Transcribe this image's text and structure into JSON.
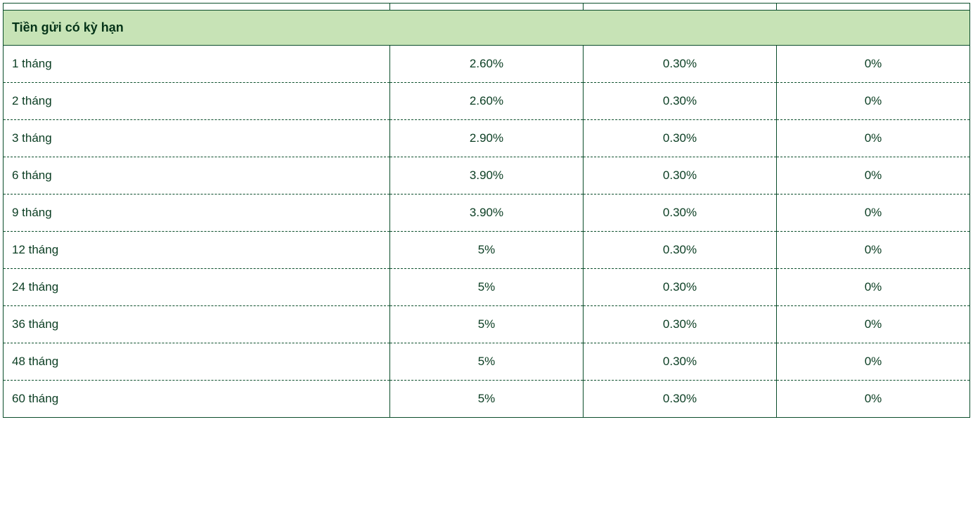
{
  "table": {
    "type": "table",
    "background_color": "#ffffff",
    "border_color": "#0a4d2a",
    "dashed_border_color": "#0a4d2a",
    "text_color": "#0a3d22",
    "font_size_header": 18,
    "font_size_cell": 17,
    "column_widths_pct": [
      40,
      20,
      20,
      20
    ],
    "section_header": {
      "label": "Tiền gửi có kỳ hạn",
      "background_color": "#c7e3b6",
      "font_weight": "700",
      "text_color": "#043318"
    },
    "columns": [
      {
        "key": "term",
        "align": "left"
      },
      {
        "key": "rate1",
        "align": "center"
      },
      {
        "key": "rate2",
        "align": "center"
      },
      {
        "key": "rate3",
        "align": "center"
      }
    ],
    "rows": [
      {
        "term": "1 tháng",
        "rate1": "2.60%",
        "rate2": "0.30%",
        "rate3": "0%"
      },
      {
        "term": "2 tháng",
        "rate1": "2.60%",
        "rate2": "0.30%",
        "rate3": "0%"
      },
      {
        "term": "3 tháng",
        "rate1": "2.90%",
        "rate2": "0.30%",
        "rate3": "0%"
      },
      {
        "term": "6 tháng",
        "rate1": "3.90%",
        "rate2": "0.30%",
        "rate3": "0%"
      },
      {
        "term": "9 tháng",
        "rate1": "3.90%",
        "rate2": "0.30%",
        "rate3": "0%"
      },
      {
        "term": "12 tháng",
        "rate1": "5%",
        "rate2": "0.30%",
        "rate3": "0%"
      },
      {
        "term": "24 tháng",
        "rate1": "5%",
        "rate2": "0.30%",
        "rate3": "0%"
      },
      {
        "term": "36 tháng",
        "rate1": "5%",
        "rate2": "0.30%",
        "rate3": "0%"
      },
      {
        "term": "48 tháng",
        "rate1": "5%",
        "rate2": "0.30%",
        "rate3": "0%"
      },
      {
        "term": "60 tháng",
        "rate1": "5%",
        "rate2": "0.30%",
        "rate3": "0%"
      }
    ]
  }
}
